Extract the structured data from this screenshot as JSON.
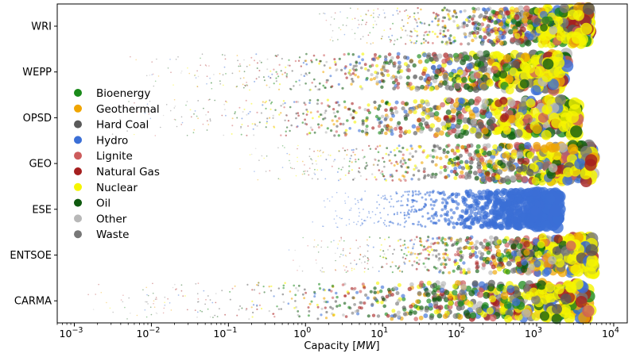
{
  "chart_data": {
    "type": "scatter",
    "title": "",
    "xlabel": "Capacity [MW]",
    "xlabel_parts": {
      "text": "Capacity [",
      "unit": "MW",
      "close": "]"
    },
    "ylabel": "",
    "x_scale": "log",
    "xlim": [
      0.0006,
      15000
    ],
    "x_ticks": [
      {
        "value": 0.001,
        "label": "10",
        "exp": "−3"
      },
      {
        "value": 0.01,
        "label": "10",
        "exp": "−2"
      },
      {
        "value": 0.1,
        "label": "10",
        "exp": "−1"
      },
      {
        "value": 1,
        "label": "10",
        "exp": "0"
      },
      {
        "value": 10,
        "label": "10",
        "exp": "1"
      },
      {
        "value": 100,
        "label": "10",
        "exp": "2"
      },
      {
        "value": 1000,
        "label": "10",
        "exp": "3"
      },
      {
        "value": 10000,
        "label": "10",
        "exp": "4"
      }
    ],
    "categories": [
      "WRI",
      "WEPP",
      "OPSD",
      "GEO",
      "ESE",
      "ENTSOE",
      "CARMA"
    ],
    "category_ranges": {
      "WRI": [
        1,
        5000
      ],
      "WEPP": [
        0.005,
        2500
      ],
      "OPSD": [
        0.002,
        3500
      ],
      "GEO": [
        0.1,
        5500
      ],
      "ESE": [
        1,
        2000
      ],
      "ENTSOE": [
        0.5,
        5500
      ],
      "CARMA": [
        0.001,
        5000
      ]
    },
    "legend": {
      "position": "left",
      "entries": [
        {
          "name": "Bioenergy",
          "color": "#1a8a1a"
        },
        {
          "name": "Geothermal",
          "color": "#f0a500"
        },
        {
          "name": "Hard Coal",
          "color": "#5a5a5a"
        },
        {
          "name": "Hydro",
          "color": "#3b6fd6"
        },
        {
          "name": "Lignite",
          "color": "#cd5c5c"
        },
        {
          "name": "Natural Gas",
          "color": "#a51f1f"
        },
        {
          "name": "Nuclear",
          "color": "#f5f500"
        },
        {
          "name": "Oil",
          "color": "#0f5a0f"
        },
        {
          "name": "Other",
          "color": "#b8b8b8"
        },
        {
          "name": "Waste",
          "color": "#777777"
        }
      ]
    },
    "grid": false
  }
}
